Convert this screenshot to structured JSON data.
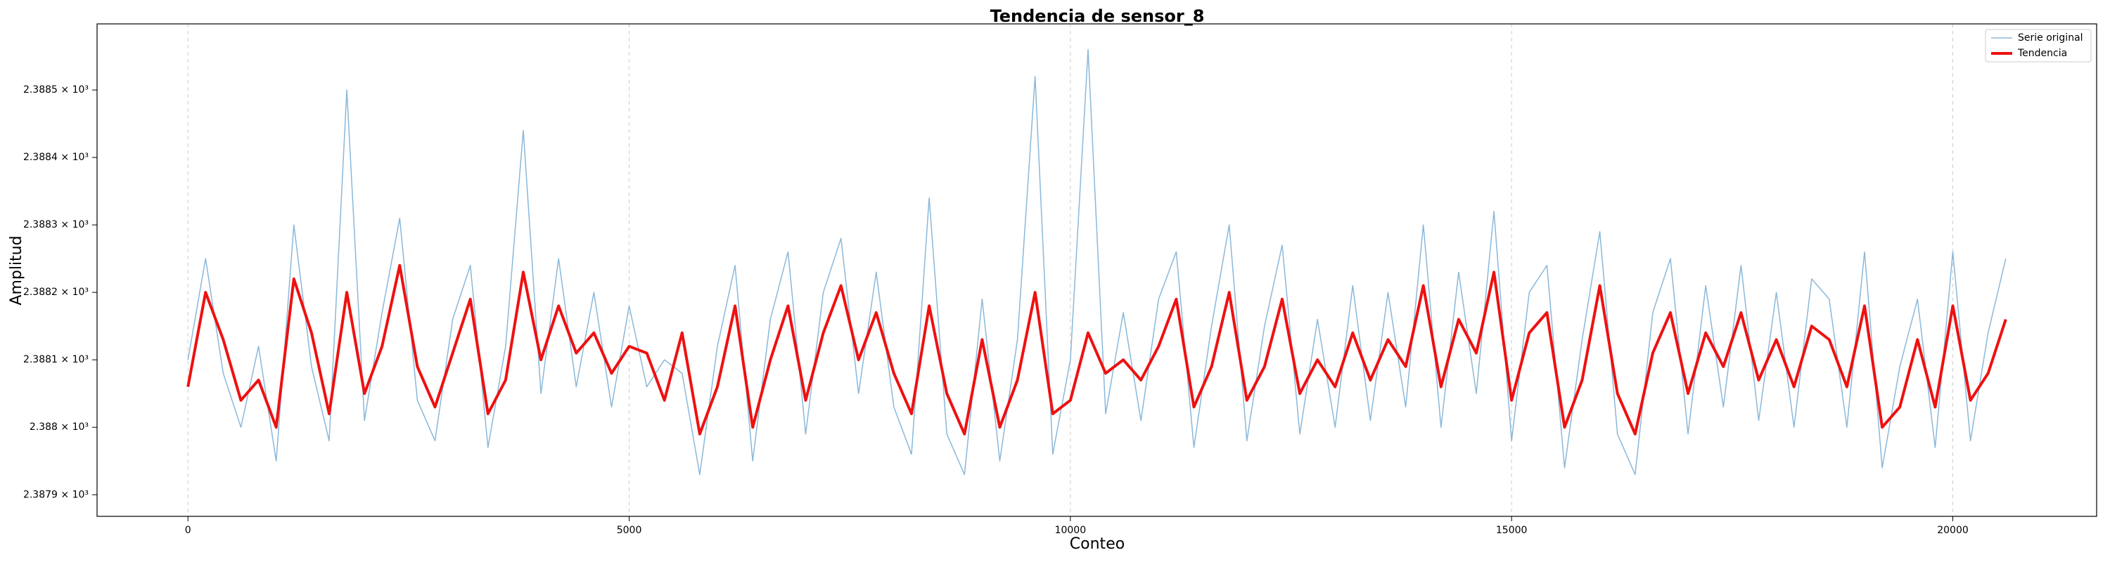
{
  "chart_data": {
    "type": "line",
    "title": "Tendencia de sensor_8",
    "xlabel": "Conteo",
    "ylabel": "Amplitud",
    "x": [
      0,
      200,
      400,
      600,
      800,
      1000,
      1200,
      1400,
      1600,
      1800,
      2000,
      2200,
      2400,
      2600,
      2800,
      3000,
      3200,
      3400,
      3600,
      3800,
      4000,
      4200,
      4400,
      4600,
      4800,
      5000,
      5200,
      5400,
      5600,
      5800,
      6000,
      6200,
      6400,
      6600,
      6800,
      7000,
      7200,
      7400,
      7600,
      7800,
      8000,
      8200,
      8400,
      8600,
      8800,
      9000,
      9200,
      9400,
      9600,
      9800,
      10000,
      10200,
      10400,
      10600,
      10800,
      11000,
      11200,
      11400,
      11600,
      11800,
      12000,
      12200,
      12400,
      12600,
      12800,
      13000,
      13200,
      13400,
      13600,
      13800,
      14000,
      14200,
      14400,
      14600,
      14800,
      15000,
      15200,
      15400,
      15600,
      15800,
      16000,
      16200,
      16400,
      16600,
      16800,
      17000,
      17200,
      17400,
      17600,
      17800,
      18000,
      18200,
      18400,
      18600,
      18800,
      19000,
      19200,
      19400,
      19600,
      19800,
      20000,
      20200,
      20400,
      20600
    ],
    "series": [
      {
        "name": "Serie original",
        "color": "#8ab8da",
        "width": 1.5,
        "values": [
          2388.1,
          2388.25,
          2388.08,
          2388.0,
          2388.12,
          2387.95,
          2388.3,
          2388.09,
          2387.98,
          2388.5,
          2388.01,
          2388.17,
          2388.31,
          2388.04,
          2387.98,
          2388.16,
          2388.24,
          2387.97,
          2388.12,
          2388.44,
          2388.05,
          2388.25,
          2388.06,
          2388.2,
          2388.03,
          2388.18,
          2388.06,
          2388.1,
          2388.08,
          2387.93,
          2388.12,
          2388.24,
          2387.95,
          2388.16,
          2388.26,
          2387.99,
          2388.2,
          2388.28,
          2388.05,
          2388.23,
          2388.03,
          2387.96,
          2388.34,
          2387.99,
          2387.93,
          2388.19,
          2387.95,
          2388.13,
          2388.52,
          2387.96,
          2388.1,
          2388.56,
          2388.02,
          2388.17,
          2388.01,
          2388.19,
          2388.26,
          2387.97,
          2388.15,
          2388.3,
          2387.98,
          2388.15,
          2388.27,
          2387.99,
          2388.16,
          2388.0,
          2388.21,
          2388.01,
          2388.2,
          2388.03,
          2388.3,
          2388.0,
          2388.23,
          2388.05,
          2388.32,
          2387.98,
          2388.2,
          2388.24,
          2387.94,
          2388.13,
          2388.29,
          2387.99,
          2387.93,
          2388.17,
          2388.25,
          2387.99,
          2388.21,
          2388.03,
          2388.24,
          2388.01,
          2388.2,
          2388.0,
          2388.22,
          2388.19,
          2388.0,
          2388.26,
          2387.94,
          2388.09,
          2388.19,
          2387.97,
          2388.26,
          2387.98,
          2388.14,
          2388.25
        ]
      },
      {
        "name": "Tendencia",
        "color": "#ee1111",
        "width": 4,
        "values": [
          2388.06,
          2388.2,
          2388.13,
          2388.04,
          2388.07,
          2388.0,
          2388.22,
          2388.14,
          2388.02,
          2388.2,
          2388.05,
          2388.12,
          2388.24,
          2388.09,
          2388.03,
          2388.11,
          2388.19,
          2388.02,
          2388.07,
          2388.23,
          2388.1,
          2388.18,
          2388.11,
          2388.14,
          2388.08,
          2388.12,
          2388.11,
          2388.04,
          2388.14,
          2387.99,
          2388.06,
          2388.18,
          2388.0,
          2388.1,
          2388.18,
          2388.04,
          2388.14,
          2388.21,
          2388.1,
          2388.17,
          2388.08,
          2388.02,
          2388.18,
          2388.05,
          2387.99,
          2388.13,
          2388.0,
          2388.07,
          2388.2,
          2388.02,
          2388.04,
          2388.14,
          2388.08,
          2388.1,
          2388.07,
          2388.12,
          2388.19,
          2388.03,
          2388.09,
          2388.2,
          2388.04,
          2388.09,
          2388.19,
          2388.05,
          2388.1,
          2388.06,
          2388.14,
          2388.07,
          2388.13,
          2388.09,
          2388.21,
          2388.06,
          2388.16,
          2388.11,
          2388.23,
          2388.04,
          2388.14,
          2388.17,
          2388.0,
          2388.07,
          2388.21,
          2388.05,
          2387.99,
          2388.11,
          2388.17,
          2388.05,
          2388.14,
          2388.09,
          2388.17,
          2388.07,
          2388.13,
          2388.06,
          2388.15,
          2388.13,
          2388.06,
          2388.18,
          2388.0,
          2388.03,
          2388.13,
          2388.03,
          2388.18,
          2388.04,
          2388.08,
          2388.16
        ]
      }
    ],
    "xlim": [
      -1030,
      21630
    ],
    "xticks": [
      0,
      5000,
      10000,
      15000,
      20000
    ],
    "ylim": [
      2387.868,
      2388.598
    ],
    "yscale": "log",
    "yticks": [
      {
        "value": 2387.9,
        "label": "2.3879 × 10³"
      },
      {
        "value": 2388.0,
        "label": "2.388 × 10³"
      },
      {
        "value": 2388.1,
        "label": "2.3881 × 10³"
      },
      {
        "value": 2388.2,
        "label": "2.3882 × 10³"
      },
      {
        "value": 2388.3,
        "label": "2.3883 × 10³"
      },
      {
        "value": 2388.4,
        "label": "2.3884 × 10³"
      },
      {
        "value": 2388.5,
        "label": "2.3885 × 10³"
      }
    ],
    "xgrid": true,
    "legend": "upper right"
  }
}
